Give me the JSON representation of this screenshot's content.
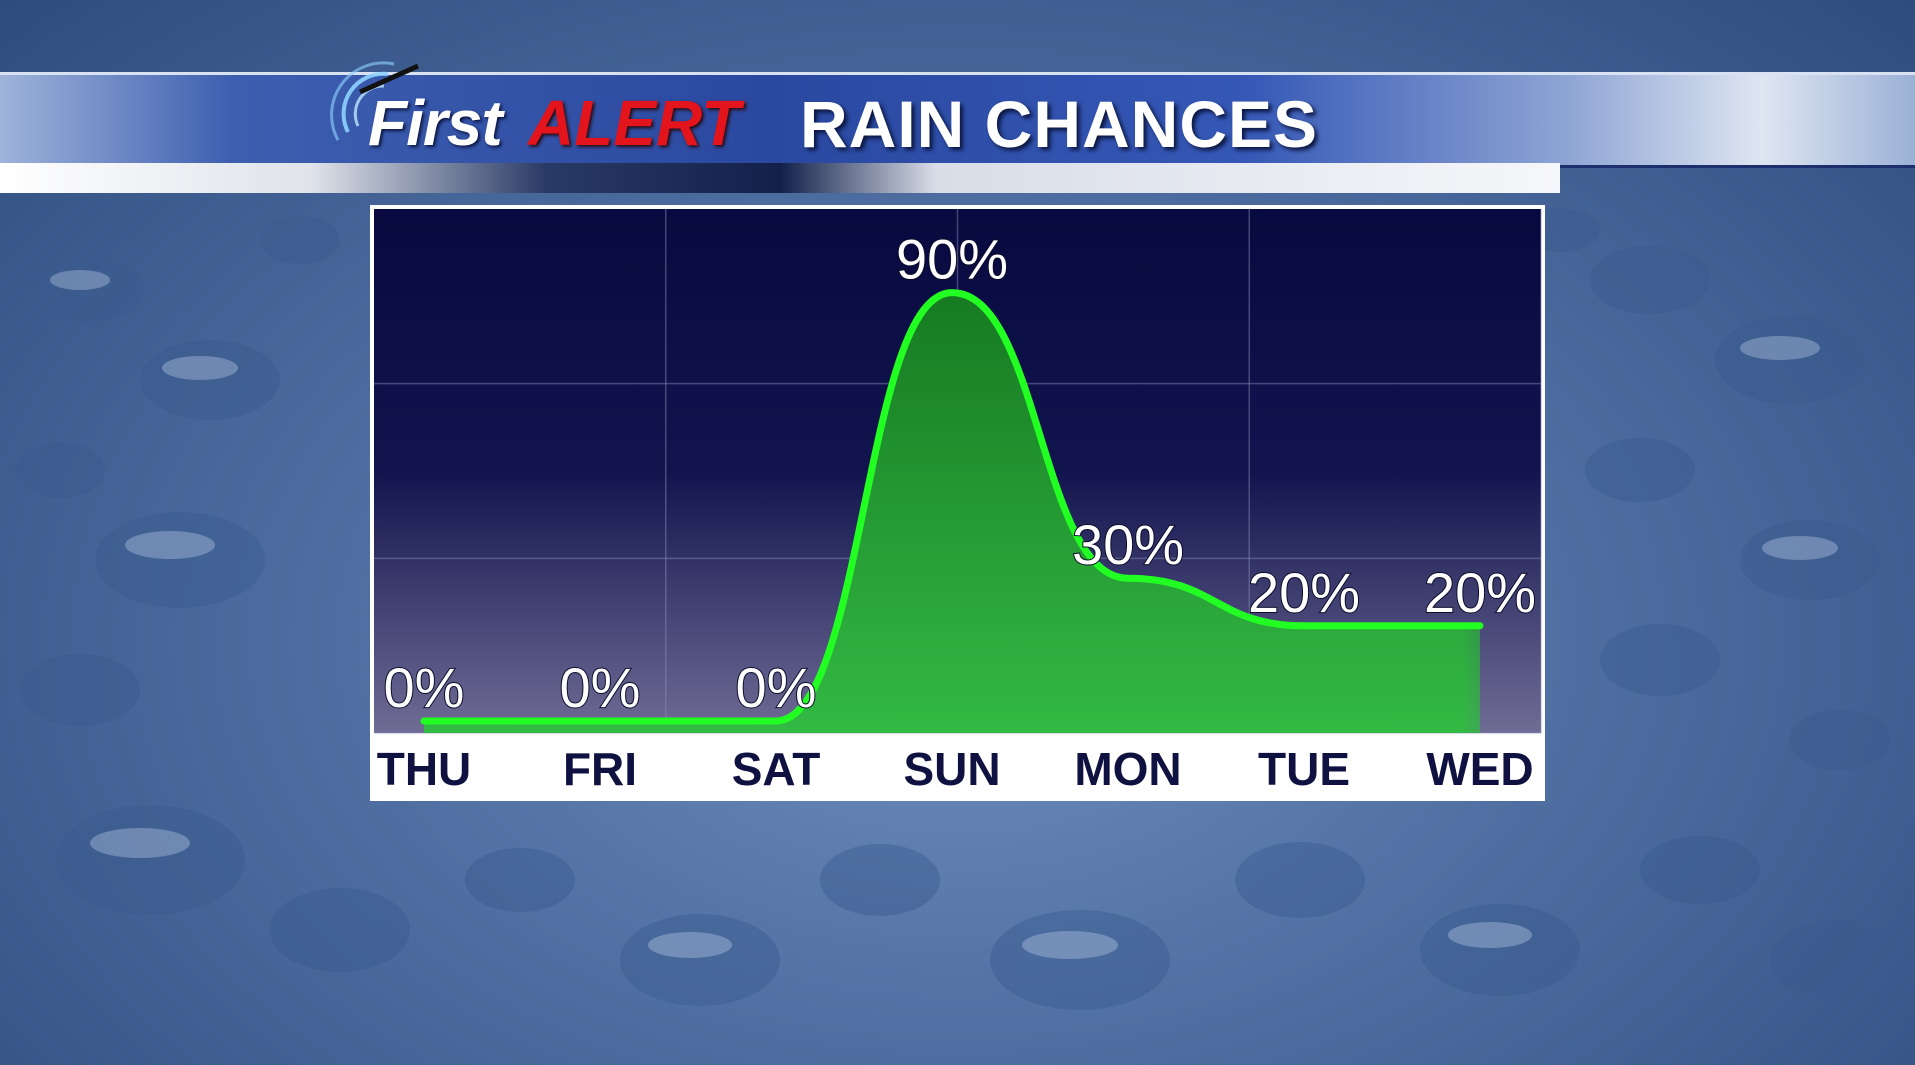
{
  "header": {
    "logo_first": "First",
    "logo_alert": "ALERT",
    "title": "RAIN CHANCES"
  },
  "colors": {
    "logo_alert": "#e3141c",
    "line": "#22ff22",
    "fill": "#1f9a2c",
    "plot_top": "#07093f",
    "plot_bottom": "#6f6c95",
    "axis_text": "#0f1140"
  },
  "chart_data": {
    "type": "area",
    "title": "RAIN CHANCES",
    "categories": [
      "THU",
      "FRI",
      "SAT",
      "SUN",
      "MON",
      "TUE",
      "WED"
    ],
    "values": [
      0,
      0,
      0,
      90,
      30,
      20,
      20
    ],
    "value_labels": [
      "0%",
      "0%",
      "0%",
      "90%",
      "30%",
      "20%",
      "20%"
    ],
    "ylim": [
      0,
      100
    ],
    "grid": true,
    "legend": "none"
  }
}
